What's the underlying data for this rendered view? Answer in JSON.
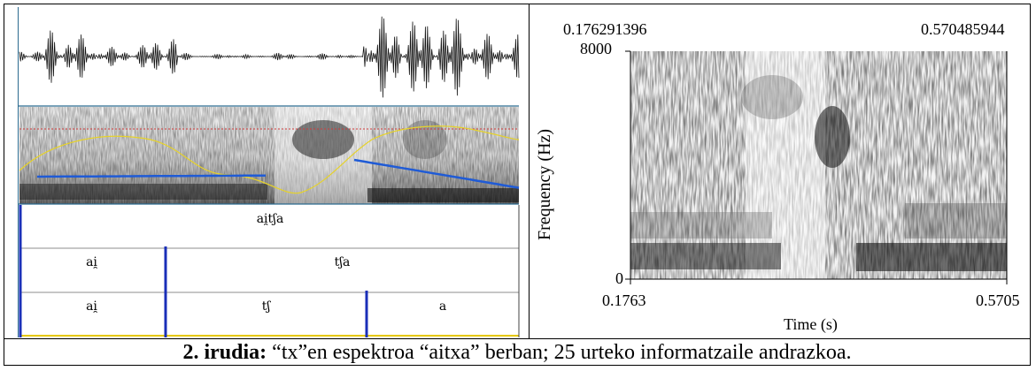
{
  "praat_panel": {
    "tier1_label": "ai̯tʃa",
    "tier2_labels": [
      "ai̯",
      "tʃa"
    ],
    "tier3_labels": [
      "ai̯",
      "tʃ",
      "a"
    ]
  },
  "spectrogram_panel": {
    "time_top_left": "0.176291396",
    "time_top_right": "0.570485944",
    "y_max_label": "8000",
    "y_min_label": "0",
    "ylabel": "Frequency (Hz)",
    "x_left_label": "0.1763",
    "x_right_label": "0.5705",
    "xlabel": "Time (s)"
  },
  "caption": {
    "number": "2. irudia:",
    "text": " “tx”en espektroa “aitxa” berban; 25 urteko informatzaile andrazkoa."
  }
}
